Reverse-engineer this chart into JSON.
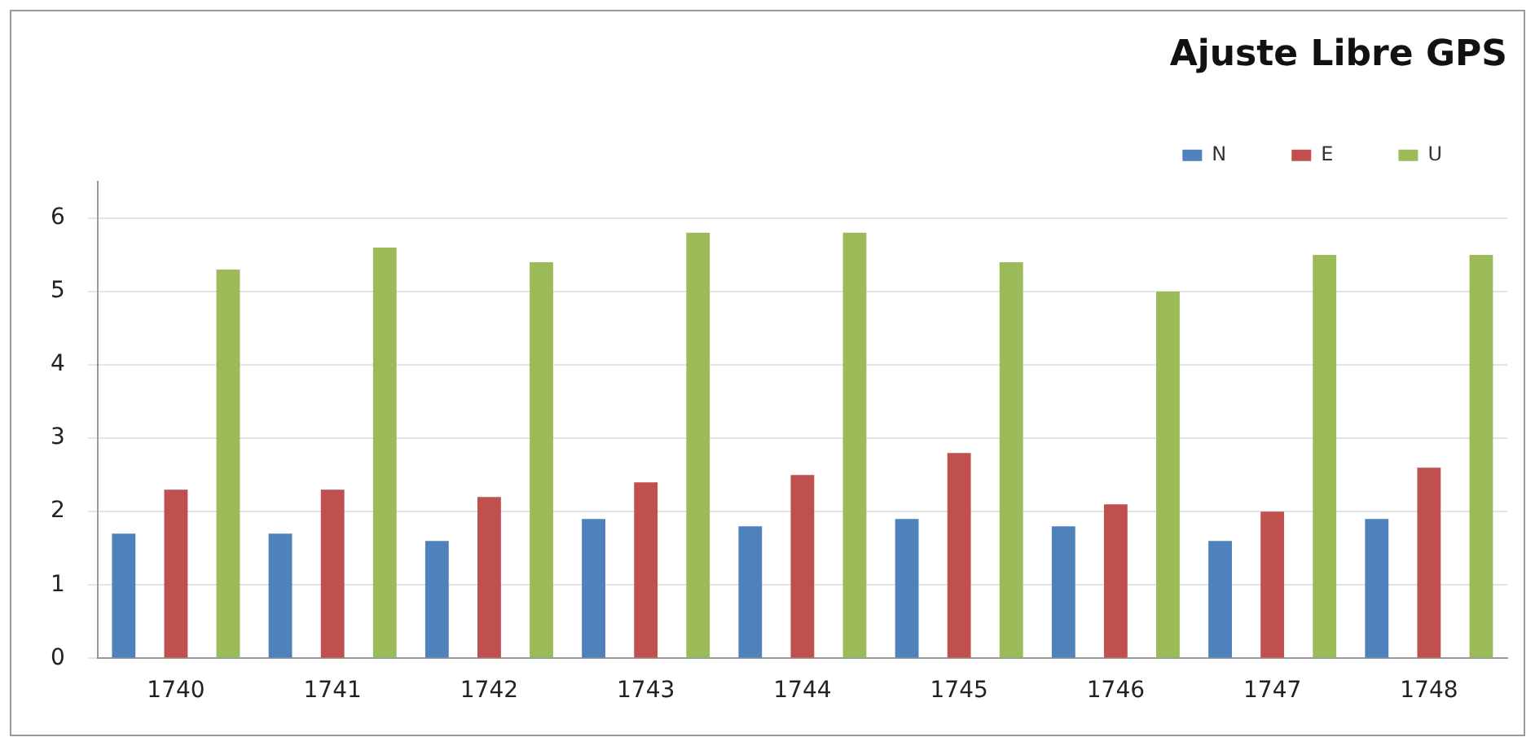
{
  "chart_data": {
    "type": "bar",
    "title": "Ajuste Libre GPS",
    "categories": [
      "1740",
      "1741",
      "1742",
      "1743",
      "1744",
      "1745",
      "1746",
      "1747",
      "1748"
    ],
    "series": [
      {
        "name": "N",
        "color": "#4f81bd",
        "values": [
          1.7,
          1.7,
          1.6,
          1.9,
          1.8,
          1.9,
          1.8,
          1.6,
          1.9
        ]
      },
      {
        "name": "E",
        "color": "#c0504d",
        "values": [
          2.3,
          2.3,
          2.2,
          2.4,
          2.5,
          2.8,
          2.1,
          2.0,
          2.6
        ]
      },
      {
        "name": "U",
        "color": "#9bbb59",
        "values": [
          5.3,
          5.6,
          5.4,
          5.8,
          5.8,
          5.4,
          5.0,
          5.5,
          5.5
        ]
      }
    ],
    "ylim": [
      0,
      6.5
    ],
    "yticks": [
      0,
      1,
      2,
      3,
      4,
      5,
      6
    ],
    "grid": "y",
    "legend": "top right"
  }
}
